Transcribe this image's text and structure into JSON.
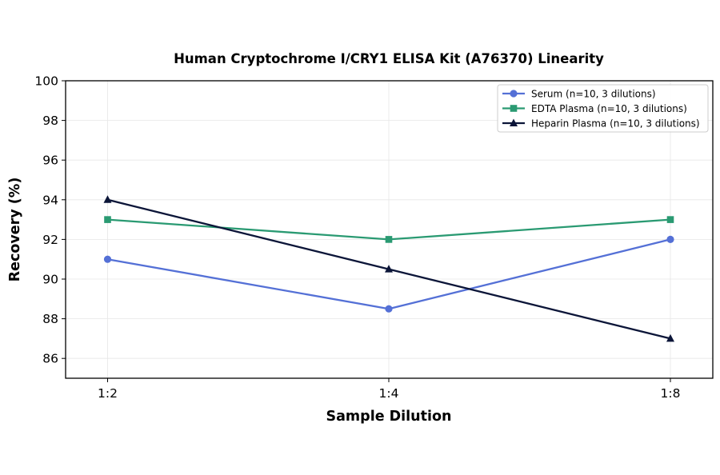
{
  "chart_data": {
    "type": "line",
    "title": "Human Cryptochrome I/CRY1 ELISA Kit (A76370) Linearity",
    "xlabel": "Sample Dilution",
    "ylabel": "Recovery (%)",
    "categories": [
      "1:2",
      "1:4",
      "1:8"
    ],
    "ylim": [
      85,
      100
    ],
    "yticks": [
      86,
      88,
      90,
      92,
      94,
      96,
      98,
      100
    ],
    "grid": true,
    "legend_position": "top-right",
    "series": [
      {
        "name": "Serum (n=10, 3 dilutions)",
        "values": [
          91,
          88.5,
          92
        ],
        "color": "#5470d6",
        "marker": "circle"
      },
      {
        "name": "EDTA Plasma (n=10, 3 dilutions)",
        "values": [
          93,
          92,
          93
        ],
        "color": "#2a9a72",
        "marker": "square"
      },
      {
        "name": "Heparin Plasma (n=10, 3 dilutions)",
        "values": [
          94,
          90.5,
          87
        ],
        "color": "#0b1538",
        "marker": "triangle"
      }
    ]
  }
}
